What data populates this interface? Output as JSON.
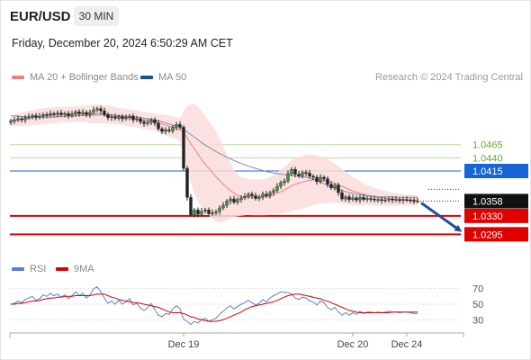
{
  "header": {
    "symbol": "EUR/USD",
    "timeframe": "30 MIN",
    "timestamp": "Friday, December 20, 2024 6:50:29 AM CET"
  },
  "legend": {
    "ma20_label": "MA 20 + Bollinger Bands",
    "ma20_color": "#f08080",
    "ma50_label": "MA 50",
    "ma50_color": "#1f4e99",
    "rsi_label": "RSI",
    "rsi_color": "#5a7fd6",
    "ma9_label": "9MA",
    "ma9_color": "#e00000"
  },
  "watermark": "Research © 2024 Trading Central",
  "chart_data": {
    "type": "candlestick",
    "price_axis": {
      "min": 1.027,
      "max": 1.056
    },
    "levels": [
      {
        "label": "1.0465",
        "value": 1.0465,
        "kind": "target",
        "color": "#6aa832"
      },
      {
        "label": "1.0440",
        "value": 1.044,
        "kind": "target",
        "color": "#6aa832"
      },
      {
        "label": "1.0415",
        "value": 1.0415,
        "kind": "pivot",
        "color": "#1565d8"
      },
      {
        "label": "1.0358",
        "value": 1.0358,
        "kind": "last",
        "color": "#111111"
      },
      {
        "label": "1.0330",
        "value": 1.033,
        "kind": "support",
        "color": "#e00000"
      },
      {
        "label": "1.0295",
        "value": 1.0295,
        "kind": "support",
        "color": "#e00000"
      }
    ],
    "closes": [
      1.051,
      1.0512,
      1.0514,
      1.0512,
      1.0516,
      1.0518,
      1.052,
      1.0517,
      1.0519,
      1.0522,
      1.0521,
      1.0524,
      1.0523,
      1.0525,
      1.0522,
      1.0524,
      1.052,
      1.0523,
      1.0527,
      1.0524,
      1.0526,
      1.0522,
      1.0526,
      1.0531,
      1.0533,
      1.0529,
      1.0522,
      1.0516,
      1.0518,
      1.0515,
      1.0518,
      1.0514,
      1.0516,
      1.0519,
      1.0512,
      1.0514,
      1.0508,
      1.0505,
      1.0507,
      1.0512,
      1.0506,
      1.0495,
      1.049,
      1.0493,
      1.0491,
      1.0498,
      1.0503,
      1.0498,
      1.042,
      1.0365,
      1.0332,
      1.0341,
      1.0333,
      1.0339,
      1.0341,
      1.0334,
      1.0336,
      1.0338,
      1.0345,
      1.035,
      1.0358,
      1.0362,
      1.0356,
      1.0361,
      1.0364,
      1.0367,
      1.0371,
      1.0368,
      1.0363,
      1.0366,
      1.0371,
      1.0368,
      1.0374,
      1.0378,
      1.0386,
      1.0393,
      1.0396,
      1.041,
      1.0418,
      1.0409,
      1.0406,
      1.0412,
      1.0411,
      1.0405,
      1.0403,
      1.0395,
      1.0403,
      1.04,
      1.039,
      1.0383,
      1.0388,
      1.0374,
      1.0362,
      1.0366,
      1.0361,
      1.0364,
      1.036,
      1.0365,
      1.0361,
      1.0363,
      1.0362,
      1.036,
      1.0361,
      1.0359,
      1.036,
      1.0362,
      1.036,
      1.0361,
      1.0359,
      1.0361,
      1.036,
      1.0359,
      1.0358,
      1.0358
    ],
    "ma20": [
      1.051,
      1.0511,
      1.0512,
      1.0513,
      1.0514,
      1.0515,
      1.0516,
      1.0517,
      1.0518,
      1.0519,
      1.052,
      1.052,
      1.0521,
      1.0521,
      1.0522,
      1.0522,
      1.0522,
      1.0522,
      1.0523,
      1.0523,
      1.0523,
      1.0523,
      1.0523,
      1.0523,
      1.0524,
      1.0524,
      1.0523,
      1.0522,
      1.0521,
      1.052,
      1.0519,
      1.0518,
      1.0517,
      1.0516,
      1.0515,
      1.0514,
      1.0512,
      1.0511,
      1.051,
      1.0509,
      1.0508,
      1.0506,
      1.0504,
      1.0502,
      1.05,
      1.0498,
      1.0496,
      1.0493,
      1.0488,
      1.0478,
      1.0467,
      1.0457,
      1.0447,
      1.0437,
      1.0428,
      1.042,
      1.0412,
      1.0404,
      1.0397,
      1.039,
      1.0384,
      1.0378,
      1.0373,
      1.0369,
      1.0367,
      1.0366,
      1.0366,
      1.0365,
      1.0365,
      1.0365,
      1.0365,
      1.0366,
      1.0368,
      1.037,
      1.0373,
      1.0376,
      1.0379,
      1.0383,
      1.0387,
      1.039,
      1.0392,
      1.0394,
      1.0396,
      1.0397,
      1.0398,
      1.0398,
      1.0398,
      1.0397,
      1.0396,
      1.0394,
      1.0392,
      1.0389,
      1.0386,
      1.0383,
      1.038,
      1.0377,
      1.0375,
      1.0373,
      1.0371,
      1.0369,
      1.0368,
      1.0366,
      1.0365,
      1.0364,
      1.0363,
      1.0362,
      1.0362,
      1.0361,
      1.0361,
      1.0361,
      1.036,
      1.036,
      1.036,
      1.0359
    ],
    "bb_width": [
      0.001,
      0.0011,
      0.0012,
      0.0013,
      0.0013,
      0.0014,
      0.0014,
      0.0015,
      0.0015,
      0.0015,
      0.0015,
      0.0015,
      0.0015,
      0.0015,
      0.0015,
      0.0015,
      0.0015,
      0.0015,
      0.0015,
      0.0015,
      0.0015,
      0.0016,
      0.0017,
      0.0018,
      0.0018,
      0.0018,
      0.0017,
      0.0017,
      0.0017,
      0.0016,
      0.0016,
      0.0016,
      0.0016,
      0.0016,
      0.0016,
      0.0016,
      0.0016,
      0.0016,
      0.0016,
      0.0016,
      0.0016,
      0.0017,
      0.0018,
      0.0019,
      0.002,
      0.002,
      0.0021,
      0.0022,
      0.004,
      0.006,
      0.0075,
      0.0085,
      0.009,
      0.0092,
      0.0092,
      0.009,
      0.0088,
      0.0085,
      0.008,
      0.0072,
      0.0062,
      0.0052,
      0.0045,
      0.004,
      0.0037,
      0.0035,
      0.0034,
      0.0034,
      0.0034,
      0.0034,
      0.0034,
      0.0035,
      0.0036,
      0.0038,
      0.004,
      0.0042,
      0.0044,
      0.0046,
      0.0048,
      0.0049,
      0.005,
      0.005,
      0.005,
      0.0049,
      0.0048,
      0.0046,
      0.0045,
      0.0043,
      0.0041,
      0.0039,
      0.0037,
      0.0035,
      0.0033,
      0.0031,
      0.0029,
      0.0027,
      0.0025,
      0.0023,
      0.0021,
      0.0019,
      0.0018,
      0.0017,
      0.0016,
      0.0015,
      0.0014,
      0.0013,
      0.0012,
      0.0012,
      0.0011,
      0.0011,
      0.001,
      0.001,
      0.001,
      0.001
    ],
    "ma50": [
      1.052,
      1.0519,
      1.0519,
      1.0518,
      1.0518,
      1.0517,
      1.0517,
      1.0517,
      1.0517,
      1.0517,
      1.0517,
      1.0517,
      1.0517,
      1.0518,
      1.0518,
      1.0518,
      1.0519,
      1.0519,
      1.0519,
      1.052,
      1.052,
      1.052,
      1.0521,
      1.0521,
      1.0521,
      1.0521,
      1.0521,
      1.0521,
      1.0521,
      1.052,
      1.052,
      1.0519,
      1.0519,
      1.0518,
      1.0518,
      1.0517,
      1.0516,
      1.0515,
      1.0514,
      1.0513,
      1.0512,
      1.051,
      1.0508,
      1.0506,
      1.0504,
      1.0502,
      1.05,
      1.0498,
      1.0494,
      1.0489,
      1.0484,
      1.0479,
      1.0474,
      1.0469,
      1.0464,
      1.046,
      1.0456,
      1.0452,
      1.0448,
      1.0445,
      1.0441,
      1.0438,
      1.0435,
      1.0432,
      1.0429,
      1.0427,
      1.0424,
      1.0422,
      1.042,
      1.0418,
      1.0416,
      1.0414,
      1.0413,
      1.0411,
      1.041,
      1.0409,
      1.0408,
      1.0408,
      1.0407,
      1.0406,
      1.0405,
      1.0404,
      1.0403,
      1.0401,
      1.0399,
      1.0397,
      1.0394,
      1.0391,
      1.0388,
      1.0385,
      1.0382,
      1.038,
      1.0378,
      1.0376,
      1.0374,
      1.0373,
      1.0371,
      1.037,
      1.0369,
      1.0368,
      1.0367,
      1.0367,
      1.0366,
      1.0366,
      1.0366,
      1.0366,
      1.0366,
      1.0365,
      1.0365,
      1.0365,
      1.0365,
      1.0365,
      1.0365,
      1.0365
    ],
    "rsi": {
      "axis": {
        "min": 20,
        "max": 80
      },
      "ticks": [
        "70",
        "50",
        "30"
      ],
      "values": [
        50,
        51,
        54,
        52,
        56,
        58,
        60,
        55,
        57,
        62,
        60,
        64,
        61,
        63,
        59,
        62,
        57,
        61,
        66,
        61,
        64,
        58,
        62,
        70,
        72,
        66,
        58,
        51,
        54,
        50,
        55,
        50,
        53,
        57,
        49,
        51,
        45,
        42,
        45,
        51,
        43,
        36,
        34,
        38,
        37,
        44,
        48,
        44,
        31,
        28,
        24,
        28,
        26,
        30,
        32,
        28,
        30,
        32,
        37,
        41,
        45,
        48,
        44,
        47,
        50,
        52,
        55,
        52,
        49,
        51,
        56,
        53,
        58,
        61,
        63,
        66,
        65,
        65,
        63,
        58,
        56,
        59,
        58,
        54,
        53,
        49,
        54,
        52,
        46,
        43,
        46,
        40,
        36,
        39,
        36,
        39,
        37,
        41,
        38,
        40,
        40,
        39,
        40,
        39,
        40,
        41,
        40,
        40,
        39,
        40,
        40,
        39,
        38,
        38
      ],
      "ma9": [
        50,
        50,
        51,
        51,
        52,
        53,
        54,
        54,
        55,
        56,
        57,
        58,
        58,
        59,
        59,
        60,
        60,
        60,
        61,
        61,
        61,
        61,
        61,
        62,
        63,
        63,
        63,
        61,
        59,
        58,
        56,
        55,
        54,
        53,
        52,
        52,
        51,
        50,
        49,
        48,
        47,
        46,
        44,
        42,
        40,
        39,
        39,
        39,
        38,
        36,
        34,
        33,
        31,
        30,
        29,
        28,
        28,
        28,
        29,
        30,
        32,
        34,
        36,
        38,
        40,
        43,
        45,
        47,
        48,
        49,
        50,
        51,
        52,
        53,
        55,
        57,
        59,
        61,
        62,
        63,
        63,
        62,
        61,
        60,
        59,
        58,
        57,
        55,
        54,
        52,
        50,
        48,
        46,
        44,
        42,
        41,
        40,
        39,
        39,
        39,
        39,
        39,
        39,
        39,
        39,
        39,
        40,
        40,
        40,
        40,
        40,
        40,
        40,
        40
      ]
    },
    "x_labels": [
      {
        "label": "Dec 19",
        "index": 48
      },
      {
        "label": "Dec 20",
        "index": 95
      },
      {
        "label": "Dec 24",
        "index": 110
      }
    ],
    "projection": {
      "from": 1.0358,
      "to": 1.0295
    }
  }
}
